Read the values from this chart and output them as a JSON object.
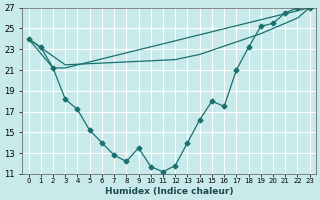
{
  "xlabel": "Humidex (Indice chaleur)",
  "bg_color": "#c8eaea",
  "grid_color": "#ffffff",
  "line_color": "#1a7070",
  "xlim": [
    -0.5,
    23.5
  ],
  "ylim": [
    11,
    27
  ],
  "yticks": [
    11,
    13,
    15,
    17,
    19,
    21,
    23,
    25,
    27
  ],
  "xtick_labels": [
    "0",
    "1",
    "2",
    "3",
    "4",
    "5",
    "6",
    "7",
    "8",
    "9",
    "10",
    "11",
    "12",
    "13",
    "14",
    "15",
    "16",
    "17",
    "18",
    "19",
    "20",
    "21",
    "22",
    "23"
  ],
  "line1_x": [
    0,
    1,
    2,
    3,
    4,
    5,
    6,
    7,
    8,
    9,
    10,
    11,
    12,
    13,
    14,
    15,
    16,
    17,
    18,
    19,
    20,
    21,
    22,
    23
  ],
  "line1_y": [
    24.0,
    23.2,
    21.2,
    18.2,
    17.2,
    15.2,
    14.0,
    12.8,
    12.2,
    13.5,
    11.7,
    11.2,
    11.8,
    14.0,
    16.2,
    18.0,
    17.5,
    21.0,
    23.2,
    25.2,
    25.5,
    26.5,
    27.0,
    27.0
  ],
  "line2_x": [
    0,
    2,
    3,
    23
  ],
  "line2_y": [
    24.0,
    21.2,
    21.2,
    27.0
  ],
  "line3_x": [
    0,
    3,
    12,
    14,
    19,
    21,
    22,
    23
  ],
  "line3_y": [
    24.0,
    21.5,
    22.0,
    22.5,
    24.5,
    25.5,
    26.0,
    27.0
  ]
}
